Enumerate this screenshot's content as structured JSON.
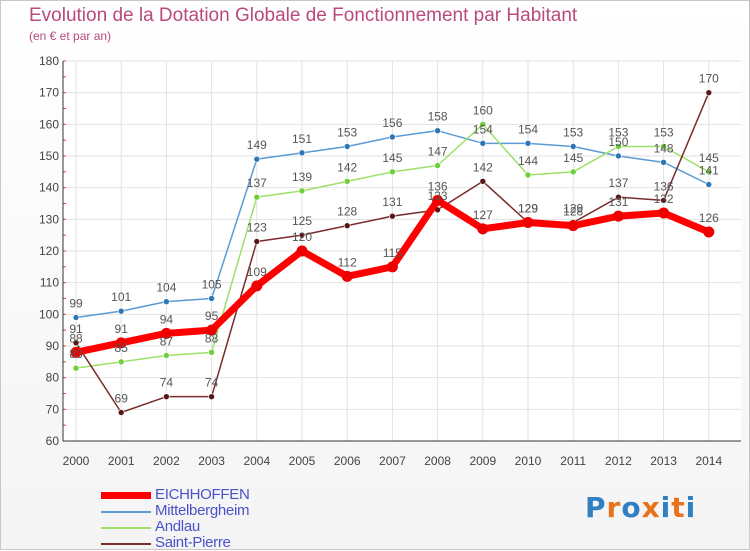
{
  "title": "Evolution de la Dotation Globale de Fonctionnement par Habitant",
  "subtitle": "(en € et par an)",
  "logo": {
    "text": "Proxiti",
    "colors": [
      "#2f7fc1",
      "#e8731a",
      "#2f7fc1",
      "#e8731a",
      "#2f7fc1",
      "#e8731a",
      "#2f7fc1"
    ]
  },
  "chart_data": {
    "type": "line",
    "title": "Evolution de la Dotation Globale de Fonctionnement par Habitant",
    "subtitle": "(en € et par an)",
    "xlabel": "",
    "ylabel": "",
    "ylim": [
      60,
      180
    ],
    "yticks": [
      60,
      70,
      80,
      90,
      100,
      110,
      120,
      130,
      140,
      150,
      160,
      170,
      180
    ],
    "grid": true,
    "legend_position": "bottom-left",
    "categories": [
      "2000",
      "2001",
      "2002",
      "2003",
      "2004",
      "2005",
      "2006",
      "2007",
      "2008",
      "2009",
      "2010",
      "2011",
      "2012",
      "2013",
      "2014"
    ],
    "series": [
      {
        "name": "Mittelbergheim",
        "color": "#5b9bd5",
        "marker": "#2e75b6",
        "values": [
          99,
          101,
          104,
          105,
          149,
          151,
          153,
          156,
          158,
          154,
          154,
          153,
          150,
          148,
          141
        ]
      },
      {
        "name": "Andlau",
        "color": "#9ee06a",
        "marker": "#6fcf3a",
        "values": [
          83,
          85,
          87,
          88,
          137,
          139,
          142,
          145,
          147,
          160,
          144,
          145,
          153,
          153,
          145
        ]
      },
      {
        "name": "Saint-Pierre",
        "color": "#7a2b2b",
        "marker": "#5a1616",
        "values": [
          91,
          69,
          74,
          74,
          123,
          125,
          128,
          131,
          133,
          142,
          129,
          129,
          137,
          136,
          170
        ]
      },
      {
        "name": "EICHHOFFEN",
        "color": "#ff0000",
        "marker": "#ee0000",
        "values": [
          88,
          91,
          94,
          95,
          109,
          120,
          112,
          115,
          136,
          127,
          129,
          128,
          131,
          132,
          126
        ]
      }
    ],
    "legend_order": [
      "EICHHOFFEN",
      "Mittelbergheim",
      "Andlau",
      "Saint-Pierre"
    ]
  }
}
